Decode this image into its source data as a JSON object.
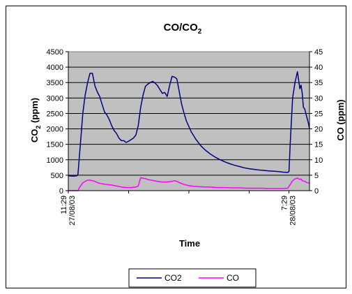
{
  "chart_data": {
    "type": "line",
    "title": "CO/CO",
    "title_subscript": "2",
    "xlabel": "Time",
    "ylabel_left": "CO",
    "ylabel_left_subscript": "2",
    "ylabel_left_unit": " (ppm)",
    "ylabel_right": "CO (ppm)",
    "ylim_left": [
      0,
      4500
    ],
    "ylim_right": [
      0,
      45
    ],
    "left_ticks": [
      "0",
      "500",
      "1000",
      "1500",
      "2000",
      "2500",
      "3000",
      "3500",
      "4000",
      "4500"
    ],
    "right_ticks": [
      "0",
      "5",
      "10",
      "15",
      "20",
      "25",
      "30",
      "35",
      "40",
      "45"
    ],
    "xlim": [
      0,
      100
    ],
    "x_tick_labels": [
      {
        "x": 0,
        "time": "11:29",
        "date": "27/08/03"
      },
      {
        "x": 91.5,
        "time": "7:29",
        "date": "28/08/03"
      }
    ],
    "grid": true,
    "plot_background": "#c0c0c0",
    "legend_position": "bottom",
    "series": [
      {
        "name": "CO2",
        "axis": "left",
        "color": "#000080",
        "points": [
          [
            0,
            480
          ],
          [
            2,
            470
          ],
          [
            3.5,
            480
          ],
          [
            4,
            520
          ],
          [
            5,
            1500
          ],
          [
            6,
            2500
          ],
          [
            7,
            3100
          ],
          [
            8,
            3500
          ],
          [
            9,
            3800
          ],
          [
            10,
            3800
          ],
          [
            11,
            3400
          ],
          [
            12,
            3200
          ],
          [
            13,
            3050
          ],
          [
            14,
            2800
          ],
          [
            15,
            2550
          ],
          [
            16,
            2450
          ],
          [
            17,
            2300
          ],
          [
            18,
            2100
          ],
          [
            19,
            1950
          ],
          [
            20,
            1850
          ],
          [
            21,
            1700
          ],
          [
            22,
            1620
          ],
          [
            23,
            1620
          ],
          [
            24,
            1560
          ],
          [
            25,
            1600
          ],
          [
            26,
            1650
          ],
          [
            27,
            1700
          ],
          [
            28,
            1800
          ],
          [
            29,
            2100
          ],
          [
            30,
            2700
          ],
          [
            31,
            3100
          ],
          [
            32,
            3380
          ],
          [
            33,
            3450
          ],
          [
            34,
            3500
          ],
          [
            35,
            3540
          ],
          [
            36,
            3480
          ],
          [
            37,
            3400
          ],
          [
            38,
            3270
          ],
          [
            39,
            3150
          ],
          [
            40,
            3180
          ],
          [
            41,
            3050
          ],
          [
            42,
            3400
          ],
          [
            43,
            3700
          ],
          [
            44,
            3680
          ],
          [
            45,
            3620
          ],
          [
            46,
            3200
          ],
          [
            47,
            2800
          ],
          [
            48,
            2500
          ],
          [
            49,
            2250
          ],
          [
            51,
            1900
          ],
          [
            53,
            1650
          ],
          [
            55,
            1450
          ],
          [
            57,
            1300
          ],
          [
            59,
            1180
          ],
          [
            61,
            1080
          ],
          [
            63,
            1000
          ],
          [
            65,
            930
          ],
          [
            67,
            870
          ],
          [
            69,
            820
          ],
          [
            71,
            780
          ],
          [
            73,
            740
          ],
          [
            75,
            710
          ],
          [
            77,
            690
          ],
          [
            79,
            670
          ],
          [
            81,
            655
          ],
          [
            83,
            640
          ],
          [
            85,
            630
          ],
          [
            87,
            620
          ],
          [
            89,
            600
          ],
          [
            91,
            590
          ],
          [
            91.5,
            620
          ],
          [
            92,
            1500
          ],
          [
            93,
            3000
          ],
          [
            94,
            3500
          ],
          [
            95,
            3850
          ],
          [
            96,
            3300
          ],
          [
            96.5,
            3420
          ],
          [
            97,
            3150
          ],
          [
            97.5,
            2700
          ],
          [
            98,
            2650
          ],
          [
            98.5,
            2500
          ],
          [
            99,
            2350
          ],
          [
            99.5,
            2200
          ],
          [
            100,
            2000
          ]
        ]
      },
      {
        "name": "CO",
        "axis": "right",
        "color": "#ff00ff",
        "points": [
          [
            0,
            0
          ],
          [
            4,
            0
          ],
          [
            5,
            1.5
          ],
          [
            6,
            2.5
          ],
          [
            7,
            3
          ],
          [
            8,
            3.4
          ],
          [
            9,
            3.4
          ],
          [
            10,
            3.2
          ],
          [
            11,
            3.0
          ],
          [
            12,
            2.6
          ],
          [
            14,
            2.2
          ],
          [
            16,
            2.0
          ],
          [
            18,
            1.8
          ],
          [
            20,
            1.5
          ],
          [
            22,
            1.2
          ],
          [
            24,
            1.0
          ],
          [
            26,
            1.0
          ],
          [
            28,
            1.2
          ],
          [
            29,
            1.5
          ],
          [
            30,
            4.2
          ],
          [
            31,
            4.0
          ],
          [
            32,
            3.9
          ],
          [
            33,
            3.6
          ],
          [
            35,
            3.3
          ],
          [
            37,
            3.0
          ],
          [
            39,
            2.8
          ],
          [
            41,
            2.8
          ],
          [
            43,
            3.0
          ],
          [
            44,
            3.2
          ],
          [
            45,
            3.0
          ],
          [
            46,
            2.6
          ],
          [
            48,
            2.0
          ],
          [
            50,
            1.6
          ],
          [
            52,
            1.4
          ],
          [
            54,
            1.3
          ],
          [
            56,
            1.2
          ],
          [
            58,
            1.2
          ],
          [
            60,
            1.1
          ],
          [
            62,
            1.0
          ],
          [
            65,
            1.0
          ],
          [
            68,
            0.9
          ],
          [
            71,
            0.9
          ],
          [
            74,
            0.8
          ],
          [
            77,
            0.8
          ],
          [
            80,
            0.8
          ],
          [
            83,
            0.7
          ],
          [
            86,
            0.7
          ],
          [
            89,
            0.7
          ],
          [
            91,
            0.8
          ],
          [
            92,
            2.0
          ],
          [
            93,
            3.2
          ],
          [
            94,
            3.8
          ],
          [
            95,
            4.1
          ],
          [
            96,
            3.6
          ],
          [
            96.5,
            3.8
          ],
          [
            97,
            3.2
          ],
          [
            98,
            3.0
          ],
          [
            99,
            2.6
          ],
          [
            100,
            2.4
          ]
        ]
      }
    ]
  }
}
